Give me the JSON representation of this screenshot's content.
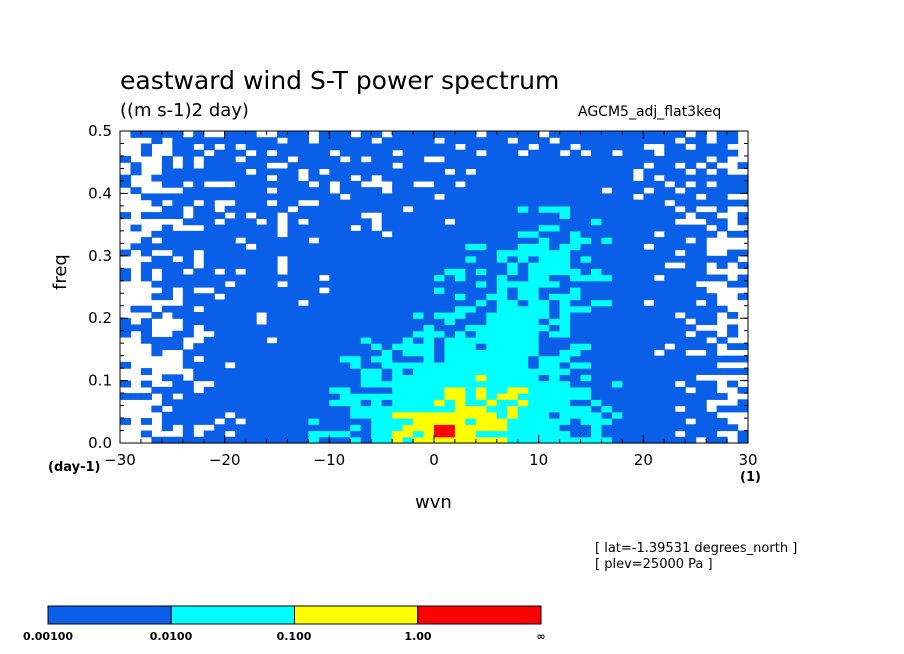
{
  "chart_data": {
    "type": "heatmap",
    "title": "eastward wind S-T power spectrum",
    "subtitle": "((m s-1)2 day)",
    "dataset_label": "AGCM5_adj_flat3keq",
    "xlabel": "wvn",
    "ylabel": "freq",
    "x_unit": "(1)",
    "y_unit": "(day-1)",
    "xlim": [
      -30,
      30
    ],
    "ylim": [
      0,
      0.5
    ],
    "x_ticks": [
      -30,
      -20,
      -10,
      0,
      10,
      20,
      30
    ],
    "y_ticks": [
      0.0,
      0.1,
      0.2,
      0.3,
      0.4,
      0.5
    ],
    "levels": [
      "0.00100",
      "0.0100",
      "0.100",
      "1.00",
      "∞"
    ],
    "level_colors": [
      "#0a5fe8",
      "#00ffff",
      "#ffff00",
      "#ff0000"
    ],
    "background_color": "#ffffff",
    "annotations": [
      "[ lat=-1.39531 degrees_north ]",
      "[ plev=25000 Pa ]"
    ],
    "peak": {
      "x": 1,
      "y": 0.02,
      "level": "1.00-∞"
    }
  }
}
